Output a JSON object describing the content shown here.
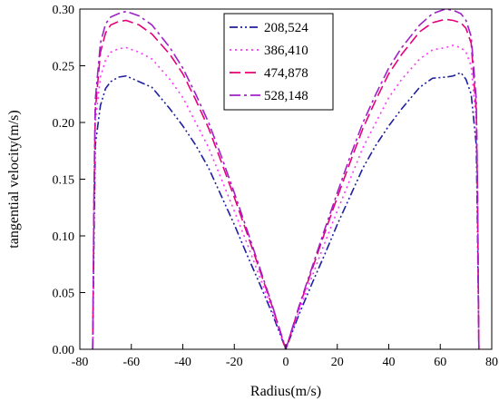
{
  "chart_data": {
    "type": "line",
    "title": "",
    "xlabel": "Radius(m/s)",
    "ylabel": "tangential velocity(m/s)",
    "xlim": [
      -80,
      80
    ],
    "ylim": [
      0,
      0.3
    ],
    "xticks": [
      -80,
      -60,
      -40,
      -20,
      0,
      20,
      40,
      60,
      80
    ],
    "yticks": [
      "0.00",
      "0.05",
      "0.10",
      "0.15",
      "0.20",
      "0.25",
      "0.30"
    ],
    "legend_position": "top-center",
    "series": [
      {
        "name": "208,524",
        "color": "#1f1fa0",
        "dash": "dash-dot-dot",
        "x": [
          -75,
          -74.5,
          -74,
          -72,
          -70,
          -68,
          -65,
          -62,
          -57,
          -52,
          -45,
          -40,
          -35,
          -30,
          -25,
          -20,
          -15,
          -10,
          -5,
          0,
          5,
          10,
          15,
          20,
          25,
          30,
          35,
          40,
          45,
          52,
          57,
          62,
          65,
          68,
          70,
          72,
          74,
          74.5,
          75
        ],
        "y": [
          0.0,
          0.1,
          0.18,
          0.215,
          0.23,
          0.236,
          0.24,
          0.241,
          0.236,
          0.231,
          0.212,
          0.197,
          0.18,
          0.16,
          0.135,
          0.11,
          0.083,
          0.057,
          0.03,
          0.0,
          0.03,
          0.057,
          0.083,
          0.11,
          0.135,
          0.16,
          0.18,
          0.197,
          0.212,
          0.231,
          0.239,
          0.24,
          0.241,
          0.244,
          0.238,
          0.225,
          0.18,
          0.1,
          0.0
        ]
      },
      {
        "name": "386,410",
        "color": "#ff33ff",
        "dash": "dot",
        "x": [
          -75,
          -74.5,
          -74,
          -72,
          -70,
          -68,
          -65,
          -62,
          -57,
          -52,
          -45,
          -40,
          -35,
          -30,
          -25,
          -20,
          -15,
          -10,
          -5,
          0,
          5,
          10,
          15,
          20,
          25,
          30,
          35,
          40,
          45,
          52,
          57,
          62,
          65,
          68,
          70,
          72,
          74,
          74.5,
          75
        ],
        "y": [
          0.0,
          0.12,
          0.2,
          0.24,
          0.255,
          0.262,
          0.265,
          0.266,
          0.262,
          0.256,
          0.238,
          0.222,
          0.2,
          0.178,
          0.15,
          0.122,
          0.093,
          0.063,
          0.033,
          0.0,
          0.033,
          0.063,
          0.093,
          0.122,
          0.15,
          0.178,
          0.2,
          0.222,
          0.238,
          0.256,
          0.264,
          0.266,
          0.268,
          0.266,
          0.262,
          0.25,
          0.2,
          0.12,
          0.0
        ]
      },
      {
        "name": "474,878",
        "color": "#e6007a",
        "dash": "dash",
        "x": [
          -75,
          -74.5,
          -74,
          -72,
          -70,
          -68,
          -65,
          -62,
          -57,
          -52,
          -45,
          -40,
          -35,
          -30,
          -25,
          -20,
          -15,
          -10,
          -5,
          0,
          5,
          10,
          15,
          20,
          25,
          30,
          35,
          40,
          45,
          52,
          57,
          62,
          65,
          68,
          70,
          72,
          74,
          74.5,
          75
        ],
        "y": [
          0.0,
          0.13,
          0.21,
          0.262,
          0.279,
          0.286,
          0.289,
          0.29,
          0.286,
          0.278,
          0.26,
          0.243,
          0.22,
          0.195,
          0.165,
          0.134,
          0.102,
          0.069,
          0.036,
          0.0,
          0.036,
          0.069,
          0.102,
          0.134,
          0.165,
          0.195,
          0.22,
          0.243,
          0.26,
          0.28,
          0.288,
          0.291,
          0.29,
          0.288,
          0.283,
          0.27,
          0.21,
          0.13,
          0.0
        ]
      },
      {
        "name": "528,148",
        "color": "#a020c8",
        "dash": "dash-dot",
        "x": [
          -75,
          -74.5,
          -74,
          -72,
          -70,
          -68,
          -65,
          -62,
          -57,
          -52,
          -45,
          -40,
          -35,
          -30,
          -25,
          -20,
          -15,
          -10,
          -5,
          0,
          5,
          10,
          15,
          20,
          25,
          30,
          35,
          40,
          45,
          52,
          57,
          62,
          65,
          68,
          70,
          72,
          74,
          74.5,
          75
        ],
        "y": [
          0.0,
          0.14,
          0.22,
          0.27,
          0.287,
          0.293,
          0.296,
          0.298,
          0.294,
          0.286,
          0.266,
          0.248,
          0.225,
          0.2,
          0.17,
          0.138,
          0.105,
          0.071,
          0.037,
          0.0,
          0.037,
          0.071,
          0.105,
          0.138,
          0.17,
          0.2,
          0.225,
          0.248,
          0.266,
          0.286,
          0.296,
          0.3,
          0.299,
          0.296,
          0.29,
          0.276,
          0.22,
          0.14,
          0.0
        ]
      }
    ]
  }
}
